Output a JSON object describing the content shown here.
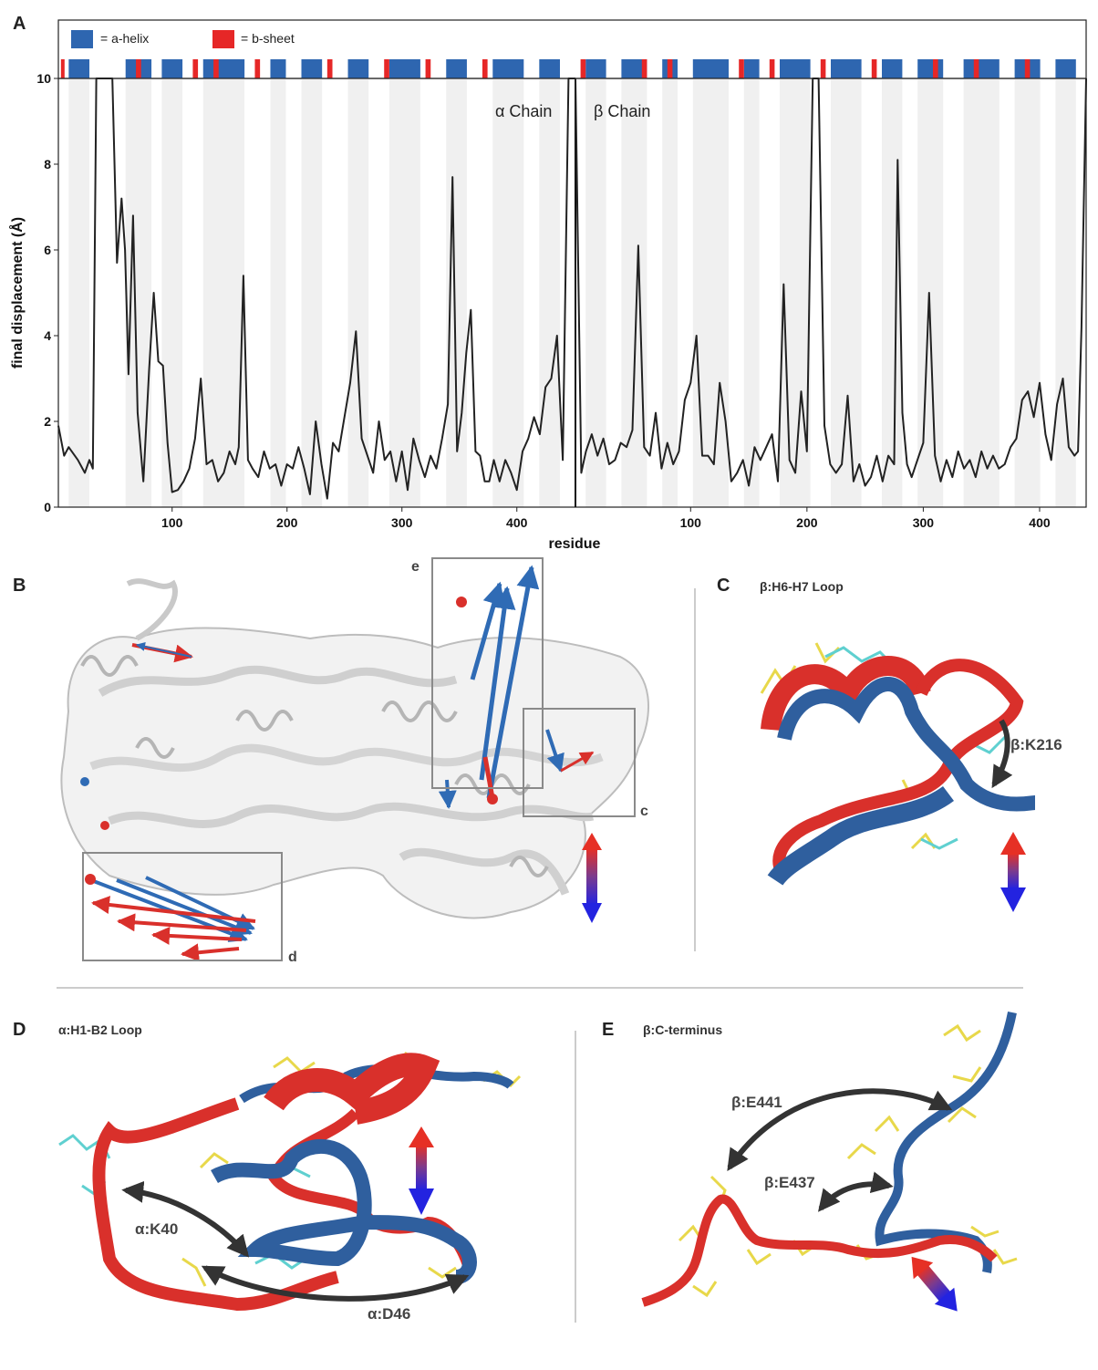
{
  "panels": {
    "A": {
      "label": "A"
    },
    "B": {
      "label": "B",
      "boxes": [
        "e",
        "c",
        "d"
      ]
    },
    "C": {
      "label": "C",
      "title": "β:H6-H7 Loop",
      "annotations": [
        "β:K216"
      ]
    },
    "D": {
      "label": "D",
      "title": "α:H1-B2 Loop",
      "annotations": [
        "α:K40",
        "α:D46"
      ]
    },
    "E": {
      "label": "E",
      "title": "β:C-terminus",
      "annotations": [
        "β:E441",
        "β:E437"
      ]
    }
  },
  "colors": {
    "helix": "#2e66b0",
    "sheet": "#e62727",
    "trace": "#222222",
    "shade": "#f0f0f0",
    "red_ribbon": "#d9302b",
    "blue_ribbon": "#2f5f9e"
  },
  "chart_data": {
    "type": "line",
    "xlabel": "residue",
    "ylabel": "final displacement (Å)",
    "ylim": [
      0,
      10
    ],
    "yticks": [
      0,
      2,
      4,
      6,
      8,
      10
    ],
    "legend": [
      {
        "label": "= a-helix",
        "color": "#2e66b0"
      },
      {
        "label": "= b-sheet",
        "color": "#e62727"
      }
    ],
    "legend_position": "top-left",
    "chains": [
      {
        "name": "α Chain",
        "xlim": [
          1,
          451
        ],
        "xticks": [
          100,
          200,
          300,
          400
        ],
        "x": [
          1,
          6,
          10,
          18,
          24,
          28,
          31,
          34,
          38,
          42,
          45,
          48,
          52,
          56,
          59,
          62,
          66,
          70,
          75,
          80,
          84,
          88,
          92,
          96,
          100,
          105,
          110,
          115,
          120,
          125,
          130,
          135,
          140,
          145,
          150,
          155,
          158,
          162,
          166,
          170,
          175,
          180,
          185,
          190,
          195,
          200,
          205,
          210,
          215,
          220,
          225,
          230,
          235,
          240,
          245,
          250,
          255,
          260,
          265,
          270,
          275,
          280,
          285,
          290,
          295,
          300,
          305,
          310,
          315,
          320,
          325,
          330,
          335,
          340,
          344,
          348,
          352,
          356,
          360,
          364,
          368,
          372,
          376,
          380,
          385,
          390,
          395,
          400,
          405,
          410,
          415,
          420,
          425,
          430,
          435,
          440,
          445,
          449,
          451
        ],
        "y": [
          1.9,
          1.2,
          1.4,
          1.1,
          0.8,
          1.1,
          0.9,
          10,
          10,
          10,
          10,
          10,
          5.7,
          7.2,
          6.0,
          3.1,
          6.8,
          2.2,
          0.6,
          3.2,
          5.0,
          3.4,
          3.3,
          1.5,
          0.35,
          0.4,
          0.6,
          0.9,
          1.6,
          3.0,
          1.0,
          1.1,
          0.6,
          0.8,
          1.3,
          1.0,
          1.4,
          5.4,
          1.1,
          0.9,
          0.7,
          1.3,
          0.9,
          1.0,
          0.5,
          1.0,
          0.9,
          1.4,
          0.9,
          0.3,
          2.0,
          1.0,
          0.2,
          1.5,
          1.3,
          2.1,
          2.9,
          4.1,
          1.6,
          1.2,
          0.8,
          2.0,
          1.1,
          1.3,
          0.6,
          1.3,
          0.4,
          1.6,
          1.1,
          0.7,
          1.2,
          0.9,
          1.6,
          2.4,
          7.7,
          1.3,
          2.2,
          3.6,
          4.6,
          1.3,
          1.2,
          0.6,
          0.6,
          1.1,
          0.6,
          1.1,
          0.8,
          0.4,
          1.3,
          1.6,
          2.1,
          1.7,
          2.8,
          3.0,
          4.0,
          1.1,
          10,
          10,
          10
        ]
      },
      {
        "name": "β Chain",
        "xlim": [
          1,
          440
        ],
        "xticks": [
          100,
          200,
          300,
          400
        ],
        "x": [
          1,
          6,
          10,
          15,
          20,
          25,
          30,
          35,
          40,
          45,
          50,
          55,
          60,
          65,
          70,
          75,
          80,
          85,
          90,
          95,
          100,
          105,
          110,
          115,
          120,
          125,
          130,
          135,
          140,
          145,
          150,
          155,
          160,
          165,
          170,
          175,
          180,
          185,
          190,
          195,
          200,
          205,
          210,
          215,
          220,
          225,
          230,
          235,
          240,
          245,
          250,
          255,
          260,
          265,
          270,
          275,
          278,
          282,
          286,
          290,
          295,
          300,
          305,
          310,
          315,
          320,
          325,
          330,
          335,
          340,
          345,
          350,
          355,
          360,
          365,
          370,
          375,
          380,
          385,
          390,
          395,
          400,
          405,
          410,
          415,
          420,
          425,
          430,
          433,
          436,
          440
        ],
        "y": [
          10,
          0.8,
          1.3,
          1.7,
          1.2,
          1.6,
          1.0,
          1.1,
          1.5,
          1.4,
          1.8,
          6.1,
          1.4,
          1.2,
          2.2,
          0.9,
          1.5,
          1.0,
          1.3,
          2.5,
          2.9,
          4.0,
          1.2,
          1.2,
          1.0,
          2.9,
          2.0,
          0.6,
          0.8,
          1.1,
          0.5,
          1.4,
          1.1,
          1.4,
          1.7,
          0.6,
          5.2,
          1.1,
          0.8,
          2.7,
          1.3,
          10,
          10,
          1.9,
          1.0,
          0.8,
          1.0,
          2.6,
          0.6,
          1.0,
          0.5,
          0.7,
          1.2,
          0.6,
          1.2,
          1.0,
          8.1,
          2.2,
          1.0,
          0.7,
          1.1,
          1.5,
          5.0,
          1.2,
          0.6,
          1.1,
          0.7,
          1.3,
          0.9,
          1.1,
          0.7,
          1.3,
          0.9,
          1.2,
          0.9,
          1.0,
          1.4,
          1.6,
          2.5,
          2.7,
          2.1,
          2.9,
          1.7,
          1.1,
          2.4,
          3.0,
          1.4,
          1.2,
          1.3,
          4.2,
          10
        ]
      }
    ],
    "grid": false
  }
}
